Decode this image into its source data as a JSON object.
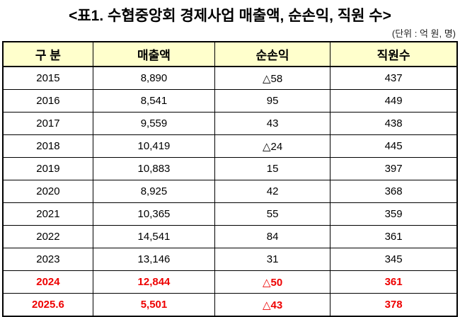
{
  "title": "<표1. 수협중앙회 경제사업 매출액, 순손익, 직원 수>",
  "unit": "(단위 : 억 원, 명)",
  "highlight_color": "#ee0000",
  "header_bg": "#ffffcc",
  "headers": [
    "구 분",
    "매출액",
    "순손익",
    "직원수"
  ],
  "rows": [
    [
      "2015",
      "8,890",
      "△58",
      "437"
    ],
    [
      "2016",
      "8,541",
      "95",
      "449"
    ],
    [
      "2017",
      "9,559",
      "43",
      "438"
    ],
    [
      "2018",
      "10,419",
      "△24",
      "445"
    ],
    [
      "2019",
      "10,883",
      "15",
      "397"
    ],
    [
      "2020",
      "8,925",
      "42",
      "368"
    ],
    [
      "2021",
      "10,365",
      "55",
      "359"
    ],
    [
      "2022",
      "14,541",
      "84",
      "361"
    ],
    [
      "2023",
      "13,146",
      "31",
      "345"
    ],
    [
      "2024",
      "12,844",
      "△50",
      "361"
    ],
    [
      "2025.6",
      "5,501",
      "△43",
      "378"
    ]
  ],
  "highlighted_rows": [
    9,
    10
  ]
}
